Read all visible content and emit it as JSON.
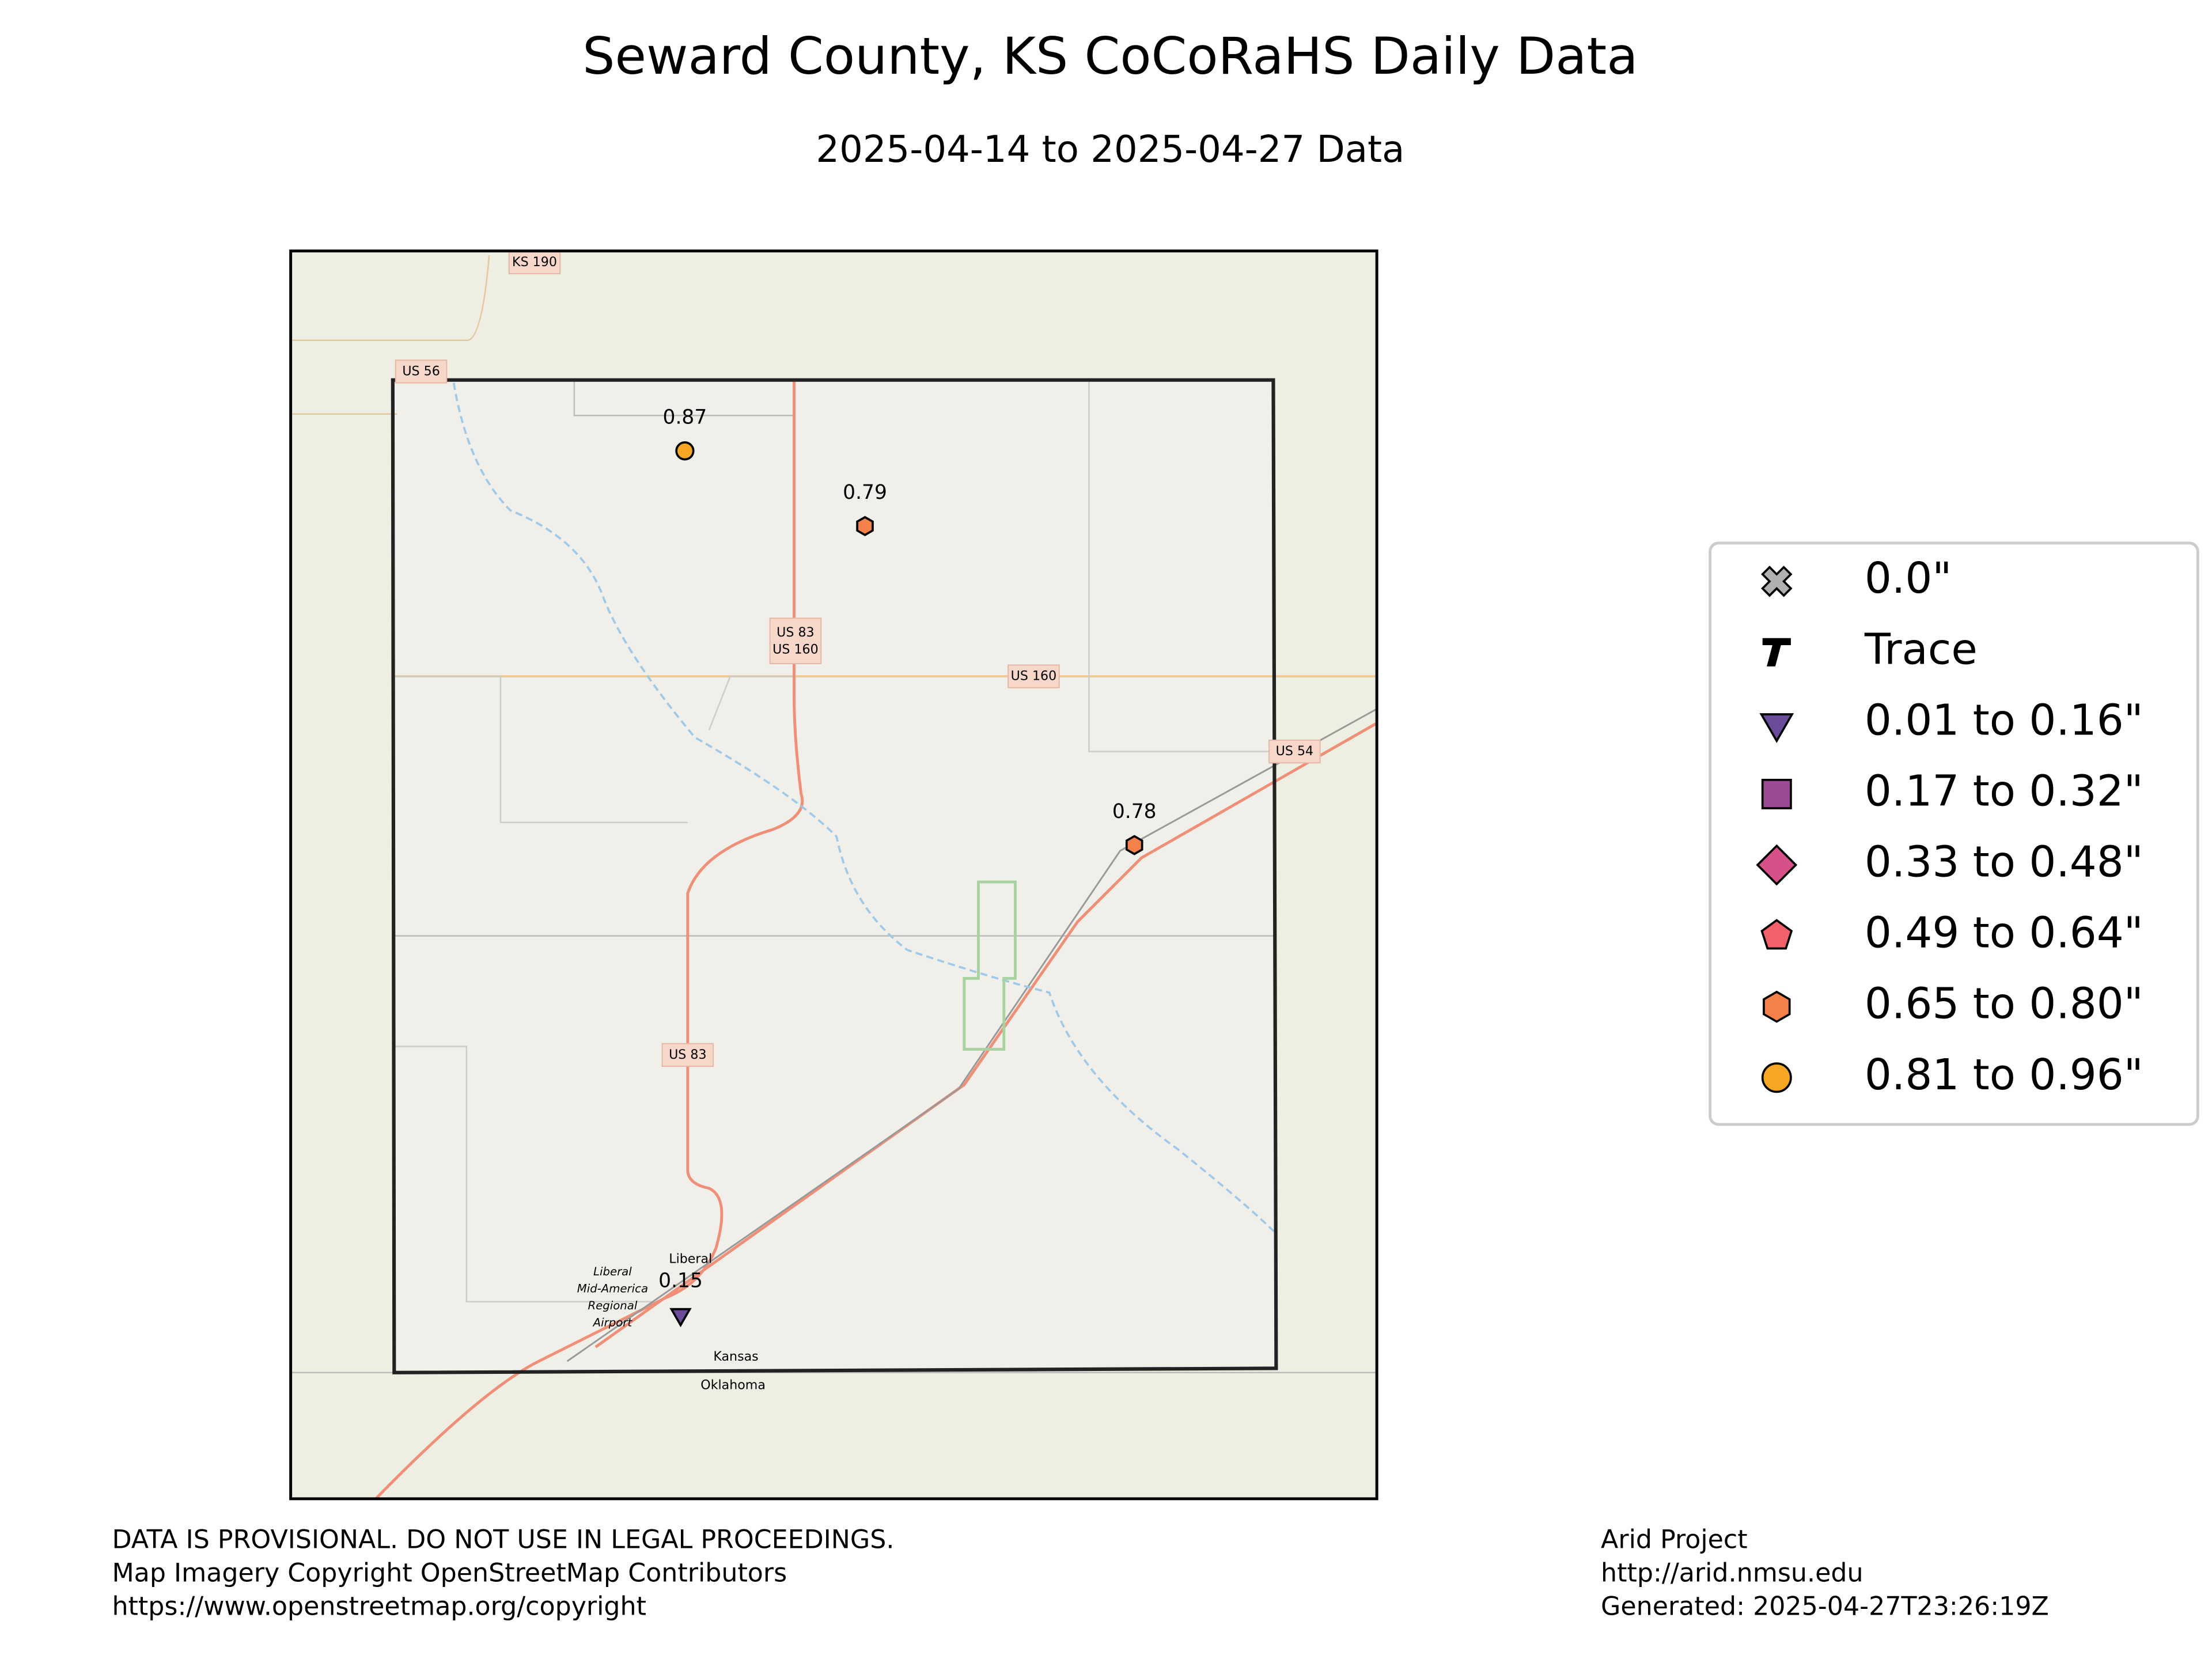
{
  "title": "Seward County, KS CoCoRaHS Daily Data",
  "subtitle": "2025-04-14 to 2025-04-27 Data",
  "map_labels": [
    "US 83\nUS 160",
    "US 160",
    "US 83",
    "US 54",
    "US 56",
    "KS 190",
    "Liberal",
    "Liberal Mid-America Regional Airport",
    "Kansas",
    "Oklahoma"
  ],
  "stations": [
    {
      "value": 0.87,
      "marker": "circle",
      "color": "#f5a623"
    },
    {
      "value": 0.79,
      "marker": "hexagon",
      "color": "#f4804a"
    },
    {
      "value": 0.78,
      "marker": "hexagon",
      "color": "#f4804a"
    },
    {
      "value": 0.15,
      "marker": "triangle-down",
      "color": "#6b4c9a"
    }
  ],
  "legend": [
    {
      "label": "0.0\"",
      "marker": "x",
      "color": "#b0b0b0"
    },
    {
      "label": "Trace",
      "marker": "T",
      "color": "#000000"
    },
    {
      "label": "0.01 to 0.16\"",
      "marker": "triangle-down",
      "color": "#6b4c9a"
    },
    {
      "label": "0.17 to 0.32\"",
      "marker": "square",
      "color": "#9c4a96"
    },
    {
      "label": "0.33 to 0.48\"",
      "marker": "diamond",
      "color": "#d6508a"
    },
    {
      "label": "0.49 to 0.64\"",
      "marker": "pentagon",
      "color": "#f2606a"
    },
    {
      "label": "0.65 to 0.80\"",
      "marker": "hexagon",
      "color": "#f4804a"
    },
    {
      "label": "0.81 to 0.96\"",
      "marker": "circle",
      "color": "#f5a623"
    }
  ],
  "footer_left": [
    "DATA IS PROVISIONAL. DO NOT USE IN LEGAL PROCEEDINGS.",
    "Map Imagery Copyright OpenStreetMap Contributors",
    "https://www.openstreetmap.org/copyright"
  ],
  "footer_right": [
    "Arid Project",
    "http://arid.nmsu.edu",
    "Generated: 2025-04-27T23:26:19Z"
  ]
}
